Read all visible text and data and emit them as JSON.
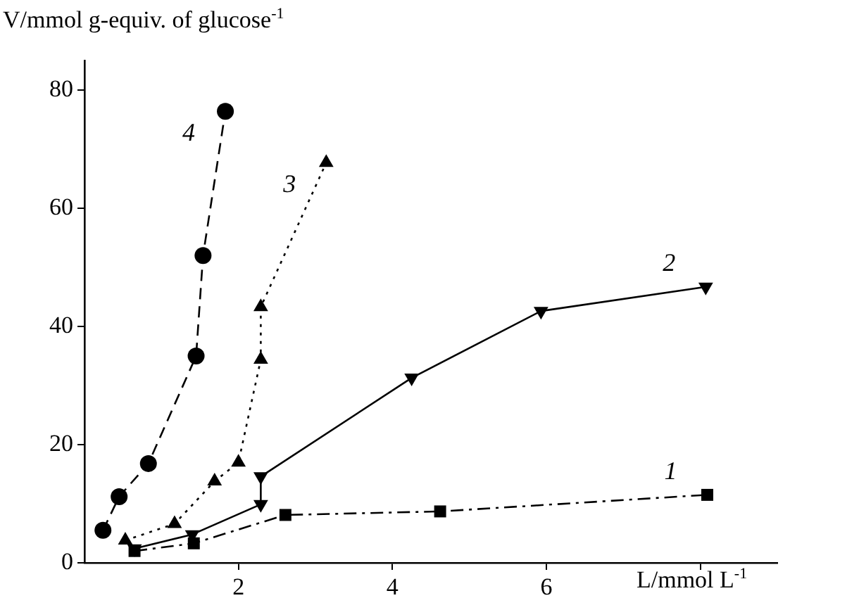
{
  "chart_data": {
    "type": "line",
    "xlabel": "L/mmol L$^{-1}$",
    "ylabel": "V/mmol g-equiv. of glucose$^{-1}$",
    "xlim": [
      0,
      9
    ],
    "xticks": [
      2,
      4,
      6,
      {
        "value": 8,
        "label": null
      }
    ],
    "ylim": [
      0,
      85
    ],
    "yticks": [
      0,
      20,
      40,
      60,
      80
    ],
    "grid": false,
    "legend": false,
    "series": [
      {
        "name": "1",
        "color": "#000000",
        "marker": "square",
        "line_style": "dashdot",
        "x": [
          0.65,
          1.42,
          2.61,
          4.62,
          8.09
        ],
        "values": [
          2.0,
          3.3,
          8.1,
          8.7,
          11.5
        ]
      },
      {
        "name": "2",
        "color": "#000000",
        "marker": "triangle-down",
        "line_style": "solid",
        "x": [
          0.65,
          1.4,
          2.29,
          2.29,
          4.25,
          5.93,
          8.07
        ],
        "values": [
          2.4,
          4.8,
          9.9,
          14.6,
          31.3,
          42.6,
          46.7
        ]
      },
      {
        "name": "3",
        "color": "#000000",
        "marker": "triangle",
        "line_style": "dotted",
        "x": [
          0.53,
          1.17,
          1.69,
          2.0,
          2.29,
          2.29,
          3.14
        ],
        "values": [
          3.8,
          6.6,
          13.8,
          17.0,
          34.4,
          43.3,
          67.7
        ]
      },
      {
        "name": "4",
        "color": "#000000",
        "marker": "circle",
        "line_style": "dashed",
        "x": [
          0.24,
          0.45,
          0.83,
          1.45,
          1.54,
          1.83
        ],
        "values": [
          5.5,
          11.2,
          16.8,
          35.0,
          52.0,
          76.4
        ]
      }
    ]
  }
}
